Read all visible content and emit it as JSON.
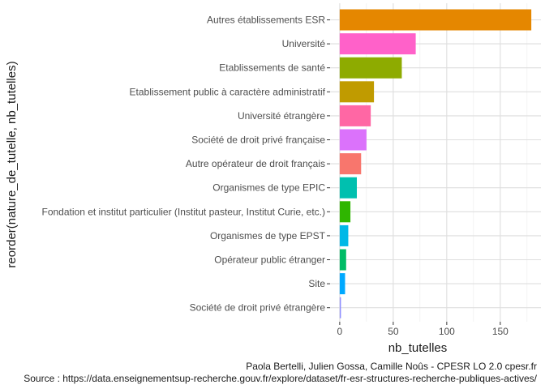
{
  "chart_data": {
    "type": "bar",
    "orientation": "horizontal",
    "xlabel": "nb_tutelles",
    "ylabel": "reorder(nature_de_tutelle, nb_tutelles)",
    "xlim": [
      0,
      180
    ],
    "x_ticks": [
      0,
      50,
      100,
      150
    ],
    "grid": true,
    "legend": "none",
    "categories": [
      "Autres établissements ESR",
      "Université",
      "Etablissements de santé",
      "Etablissement public à caractère administratif",
      "Université étrangère",
      "Société de droit privé française",
      "Autre opérateur de droit français",
      "Organismes de type EPIC",
      "Fondation et institut particulier (Institut pasteur, Institut Curie, etc.)",
      "Organismes de type EPST",
      "Opérateur public étranger",
      "Site",
      "Société de droit privé étrangère"
    ],
    "values": [
      179,
      71,
      58,
      32,
      29,
      25,
      20,
      16,
      10,
      8,
      6,
      5,
      1
    ],
    "colors": [
      "#E58700",
      "#FF61C9",
      "#8EAB00",
      "#C09B00",
      "#FF67A4",
      "#DB72FB",
      "#F8766D",
      "#00C0AF",
      "#2FB600",
      "#00B8E7",
      "#00BC66",
      "#00A9FF",
      "#8C8CFF"
    ]
  },
  "caption": {
    "line1": "Paola Bertelli, Julien Gossa, Camille Noûs - CPESR LO 2.0 cpesr.fr",
    "line2": "Source : https://data.enseignementsup-recherche.gouv.fr/explore/dataset/fr-esr-structures-recherche-publiques-actives/"
  }
}
